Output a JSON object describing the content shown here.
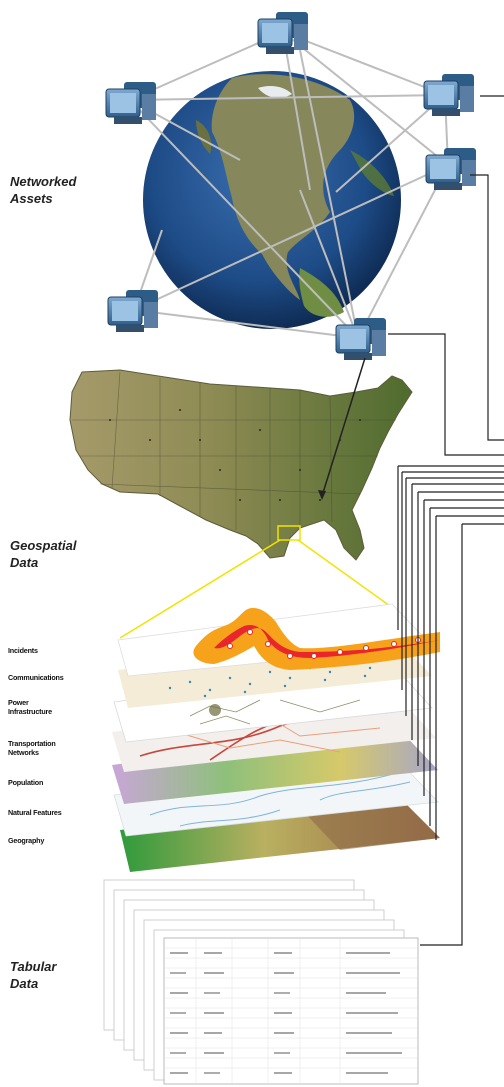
{
  "sections": {
    "networked_assets": [
      "Networked",
      "Assets"
    ],
    "geospatial_data": [
      "Geospatial",
      "Data"
    ],
    "tabular_data": [
      "Tabular",
      "Data"
    ]
  },
  "layers": [
    {
      "label": [
        "Incidents"
      ]
    },
    {
      "label": [
        "Communications"
      ]
    },
    {
      "label": [
        "Power",
        "Infrastructure"
      ]
    },
    {
      "label": [
        "Transportation",
        "Networks"
      ]
    },
    {
      "label": [
        "Population"
      ]
    },
    {
      "label": [
        "Natural Features"
      ]
    },
    {
      "label": [
        "Geography"
      ]
    }
  ],
  "icons": {
    "computer": "computer-icon",
    "globe": "globe-icon",
    "usa_map": "usa-map-icon"
  },
  "colors": {
    "ocean": "#1f4e8c",
    "land": "#8a8a4a",
    "computer": "#3d6f9e",
    "connector": "#bdbdbd",
    "callout": "#f2e300",
    "incident_red": "#e8262b",
    "incident_orange": "#f7a21b"
  }
}
